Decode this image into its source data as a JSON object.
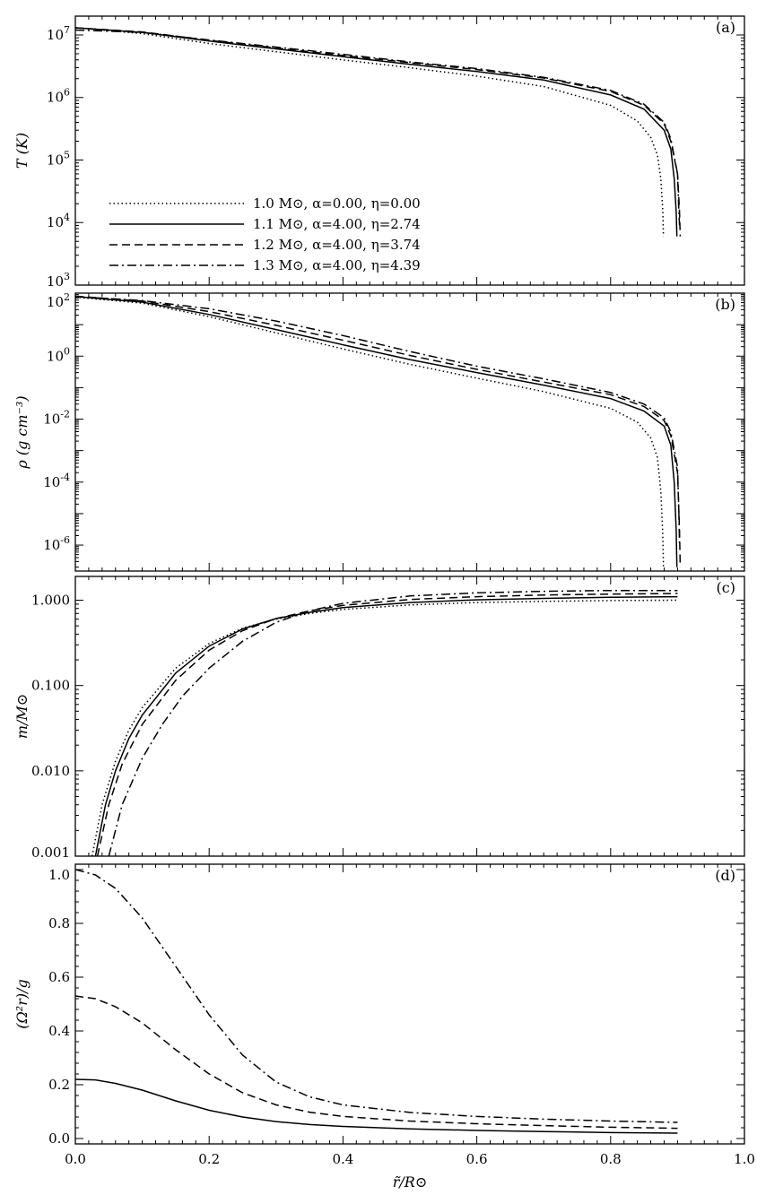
{
  "chart_data": [
    {
      "type": "line",
      "panel": "(a)",
      "ylabel": "T (K)",
      "yscale": "log",
      "xlim": [
        0.0,
        1.0
      ],
      "ylim": [
        1000,
        20000000
      ],
      "y_tick_labels": [
        {
          "base": "10",
          "exp": "3",
          "v": 1000
        },
        {
          "base": "10",
          "exp": "4",
          "v": 10000
        },
        {
          "base": "10",
          "exp": "5",
          "v": 100000
        },
        {
          "base": "10",
          "exp": "6",
          "v": 1000000
        },
        {
          "base": "10",
          "exp": "7",
          "v": 10000000
        }
      ],
      "legend": [
        {
          "text": "1.0 M⊙, α=0.00, η=0.00",
          "dash": "dotted"
        },
        {
          "text": "1.1 M⊙, α=4.00, η=2.74",
          "dash": "solid"
        },
        {
          "text": "1.2 M⊙, α=4.00, η=3.74",
          "dash": "dashed"
        },
        {
          "text": "1.3 M⊙, α=4.00, η=4.39",
          "dash": "dashdot"
        }
      ],
      "series": [
        {
          "dash": "dotted",
          "points": [
            [
              0.0,
              13000000
            ],
            [
              0.1,
              10500000
            ],
            [
              0.2,
              7300000
            ],
            [
              0.3,
              5400000
            ],
            [
              0.4,
              4000000
            ],
            [
              0.5,
              3000000
            ],
            [
              0.6,
              2200000
            ],
            [
              0.7,
              1500000
            ],
            [
              0.8,
              750000
            ],
            [
              0.84,
              420000
            ],
            [
              0.86,
              230000
            ],
            [
              0.87,
              120000
            ],
            [
              0.875,
              50000
            ],
            [
              0.878,
              15000
            ],
            [
              0.879,
              6000
            ]
          ]
        },
        {
          "dash": "solid",
          "points": [
            [
              0.0,
              13000000
            ],
            [
              0.1,
              11000000
            ],
            [
              0.2,
              8000000
            ],
            [
              0.3,
              6000000
            ],
            [
              0.4,
              4500000
            ],
            [
              0.5,
              3400000
            ],
            [
              0.6,
              2600000
            ],
            [
              0.7,
              1900000
            ],
            [
              0.8,
              1100000
            ],
            [
              0.85,
              650000
            ],
            [
              0.88,
              300000
            ],
            [
              0.89,
              150000
            ],
            [
              0.895,
              50000
            ],
            [
              0.898,
              15000
            ],
            [
              0.899,
              6000
            ]
          ]
        },
        {
          "dash": "dashed",
          "points": [
            [
              0.0,
              13000000
            ],
            [
              0.1,
              11200000
            ],
            [
              0.2,
              8200000
            ],
            [
              0.3,
              6200000
            ],
            [
              0.4,
              4700000
            ],
            [
              0.5,
              3600000
            ],
            [
              0.6,
              2800000
            ],
            [
              0.7,
              2050000
            ],
            [
              0.8,
              1250000
            ],
            [
              0.85,
              750000
            ],
            [
              0.88,
              380000
            ],
            [
              0.89,
              200000
            ],
            [
              0.9,
              60000
            ],
            [
              0.903,
              15000
            ],
            [
              0.904,
              6000
            ]
          ]
        },
        {
          "dash": "dashdot",
          "points": [
            [
              0.0,
              12000000
            ],
            [
              0.1,
              11000000
            ],
            [
              0.2,
              8300000
            ],
            [
              0.3,
              6400000
            ],
            [
              0.4,
              4900000
            ],
            [
              0.5,
              3700000
            ],
            [
              0.6,
              2900000
            ],
            [
              0.7,
              2100000
            ],
            [
              0.8,
              1300000
            ],
            [
              0.85,
              780000
            ],
            [
              0.88,
              400000
            ],
            [
              0.89,
              220000
            ],
            [
              0.9,
              60000
            ],
            [
              0.902,
              15000
            ],
            [
              0.903,
              9000
            ]
          ]
        }
      ]
    },
    {
      "type": "line",
      "panel": "(b)",
      "ylabel": "ρ (g cm⁻³)",
      "yscale": "log",
      "xlim": [
        0.0,
        1.0
      ],
      "ylim": [
        1.5e-07,
        100
      ],
      "y_tick_labels": [
        {
          "base": "10",
          "exp": "-6",
          "v": 1e-06
        },
        {
          "base": "10",
          "exp": "-4",
          "v": 0.0001
        },
        {
          "base": "10",
          "exp": "-2",
          "v": 0.01
        },
        {
          "base": "10",
          "exp": "0",
          "v": 1
        },
        {
          "base": "10",
          "exp": "2",
          "v": 100
        }
      ],
      "series": [
        {
          "dash": "dotted",
          "points": [
            [
              0.0,
              75
            ],
            [
              0.1,
              48
            ],
            [
              0.2,
              18
            ],
            [
              0.3,
              5.5
            ],
            [
              0.4,
              1.7
            ],
            [
              0.5,
              0.55
            ],
            [
              0.6,
              0.2
            ],
            [
              0.7,
              0.075
            ],
            [
              0.8,
              0.022
            ],
            [
              0.84,
              0.008
            ],
            [
              0.86,
              0.0025
            ],
            [
              0.87,
              0.0006
            ],
            [
              0.875,
              5e-05
            ],
            [
              0.878,
              2e-06
            ],
            [
              0.879,
              2e-07
            ]
          ]
        },
        {
          "dash": "solid",
          "points": [
            [
              0.0,
              78
            ],
            [
              0.1,
              52
            ],
            [
              0.2,
              21
            ],
            [
              0.3,
              7
            ],
            [
              0.4,
              2.3
            ],
            [
              0.5,
              0.78
            ],
            [
              0.6,
              0.3
            ],
            [
              0.7,
              0.12
            ],
            [
              0.8,
              0.045
            ],
            [
              0.85,
              0.018
            ],
            [
              0.88,
              0.006
            ],
            [
              0.89,
              0.0015
            ],
            [
              0.895,
              0.0001
            ],
            [
              0.898,
              3e-06
            ],
            [
              0.899,
              2e-07
            ]
          ]
        },
        {
          "dash": "dashed",
          "points": [
            [
              0.0,
              80
            ],
            [
              0.1,
              56
            ],
            [
              0.2,
              26
            ],
            [
              0.3,
              9.5
            ],
            [
              0.4,
              3.2
            ],
            [
              0.5,
              1.05
            ],
            [
              0.6,
              0.38
            ],
            [
              0.7,
              0.15
            ],
            [
              0.8,
              0.06
            ],
            [
              0.85,
              0.025
            ],
            [
              0.88,
              0.009
            ],
            [
              0.89,
              0.003
            ],
            [
              0.9,
              0.0002
            ],
            [
              0.903,
              3e-06
            ],
            [
              0.904,
              2e-07
            ]
          ]
        },
        {
          "dash": "dashdot",
          "points": [
            [
              0.0,
              78
            ],
            [
              0.1,
              58
            ],
            [
              0.2,
              32
            ],
            [
              0.3,
              13
            ],
            [
              0.4,
              4.5
            ],
            [
              0.5,
              1.4
            ],
            [
              0.6,
              0.48
            ],
            [
              0.7,
              0.19
            ],
            [
              0.8,
              0.07
            ],
            [
              0.85,
              0.03
            ],
            [
              0.88,
              0.011
            ],
            [
              0.89,
              0.004
            ],
            [
              0.9,
              0.0003
            ],
            [
              0.902,
              1e-05
            ],
            [
              0.903,
              1e-06
            ]
          ]
        }
      ]
    },
    {
      "type": "line",
      "panel": "(c)",
      "ylabel": "m/M⊙",
      "yscale": "log",
      "xlim": [
        0.0,
        1.0
      ],
      "ylim": [
        0.001,
        1.9
      ],
      "y_tick_labels": [
        {
          "text": "0.001",
          "v": 0.001
        },
        {
          "text": "0.010",
          "v": 0.01
        },
        {
          "text": "0.100",
          "v": 0.1
        },
        {
          "text": "1.000",
          "v": 1
        }
      ],
      "series": [
        {
          "dash": "dotted",
          "points": [
            [
              0.025,
              0.001
            ],
            [
              0.04,
              0.004
            ],
            [
              0.06,
              0.013
            ],
            [
              0.08,
              0.03
            ],
            [
              0.1,
              0.055
            ],
            [
              0.15,
              0.16
            ],
            [
              0.2,
              0.31
            ],
            [
              0.25,
              0.47
            ],
            [
              0.3,
              0.6
            ],
            [
              0.35,
              0.7
            ],
            [
              0.4,
              0.78
            ],
            [
              0.5,
              0.88
            ],
            [
              0.6,
              0.94
            ],
            [
              0.7,
              0.97
            ],
            [
              0.8,
              0.99
            ],
            [
              0.9,
              1.0
            ]
          ]
        },
        {
          "dash": "solid",
          "points": [
            [
              0.03,
              0.001
            ],
            [
              0.045,
              0.004
            ],
            [
              0.06,
              0.01
            ],
            [
              0.08,
              0.024
            ],
            [
              0.1,
              0.045
            ],
            [
              0.15,
              0.14
            ],
            [
              0.2,
              0.29
            ],
            [
              0.25,
              0.46
            ],
            [
              0.3,
              0.61
            ],
            [
              0.35,
              0.72
            ],
            [
              0.4,
              0.82
            ],
            [
              0.5,
              0.94
            ],
            [
              0.6,
              1.01
            ],
            [
              0.7,
              1.05
            ],
            [
              0.8,
              1.08
            ],
            [
              0.9,
              1.1
            ]
          ]
        },
        {
          "dash": "dashed",
          "points": [
            [
              0.033,
              0.001
            ],
            [
              0.05,
              0.004
            ],
            [
              0.07,
              0.012
            ],
            [
              0.1,
              0.035
            ],
            [
              0.15,
              0.115
            ],
            [
              0.2,
              0.26
            ],
            [
              0.25,
              0.44
            ],
            [
              0.3,
              0.61
            ],
            [
              0.35,
              0.75
            ],
            [
              0.4,
              0.87
            ],
            [
              0.5,
              1.02
            ],
            [
              0.6,
              1.1
            ],
            [
              0.7,
              1.15
            ],
            [
              0.8,
              1.18
            ],
            [
              0.9,
              1.2
            ]
          ]
        },
        {
          "dash": "dashdot",
          "points": [
            [
              0.05,
              0.001
            ],
            [
              0.07,
              0.004
            ],
            [
              0.1,
              0.014
            ],
            [
              0.13,
              0.035
            ],
            [
              0.16,
              0.075
            ],
            [
              0.2,
              0.16
            ],
            [
              0.25,
              0.33
            ],
            [
              0.3,
              0.55
            ],
            [
              0.35,
              0.75
            ],
            [
              0.4,
              0.92
            ],
            [
              0.5,
              1.12
            ],
            [
              0.6,
              1.22
            ],
            [
              0.7,
              1.27
            ],
            [
              0.8,
              1.3
            ],
            [
              0.9,
              1.3
            ]
          ]
        }
      ]
    },
    {
      "type": "line",
      "panel": "(d)",
      "ylabel": "(Ω²r)/g",
      "xlabel": "r̃/R⊙",
      "yscale": "linear",
      "xlim": [
        0.0,
        1.0
      ],
      "ylim": [
        -0.02,
        1.02
      ],
      "x_tick_labels": [
        "0.0",
        "0.2",
        "0.4",
        "0.6",
        "0.8",
        "1.0"
      ],
      "y_tick_labels": [
        {
          "text": "0.0",
          "v": 0.0
        },
        {
          "text": "0.2",
          "v": 0.2
        },
        {
          "text": "0.4",
          "v": 0.4
        },
        {
          "text": "0.6",
          "v": 0.6
        },
        {
          "text": "0.8",
          "v": 0.8
        },
        {
          "text": "1.0",
          "v": 1.0
        }
      ],
      "series": [
        {
          "dash": "solid",
          "points": [
            [
              0.0,
              0.22
            ],
            [
              0.03,
              0.218
            ],
            [
              0.06,
              0.205
            ],
            [
              0.1,
              0.18
            ],
            [
              0.15,
              0.14
            ],
            [
              0.2,
              0.105
            ],
            [
              0.25,
              0.08
            ],
            [
              0.3,
              0.063
            ],
            [
              0.35,
              0.052
            ],
            [
              0.4,
              0.045
            ],
            [
              0.5,
              0.036
            ],
            [
              0.6,
              0.03
            ],
            [
              0.7,
              0.026
            ],
            [
              0.8,
              0.022
            ],
            [
              0.9,
              0.02
            ]
          ]
        },
        {
          "dash": "dashed",
          "points": [
            [
              0.0,
              0.53
            ],
            [
              0.03,
              0.52
            ],
            [
              0.06,
              0.49
            ],
            [
              0.1,
              0.43
            ],
            [
              0.15,
              0.33
            ],
            [
              0.2,
              0.24
            ],
            [
              0.25,
              0.17
            ],
            [
              0.3,
              0.125
            ],
            [
              0.35,
              0.098
            ],
            [
              0.4,
              0.082
            ],
            [
              0.5,
              0.065
            ],
            [
              0.6,
              0.055
            ],
            [
              0.7,
              0.048
            ],
            [
              0.8,
              0.042
            ],
            [
              0.9,
              0.038
            ]
          ]
        },
        {
          "dash": "dashdot",
          "points": [
            [
              0.0,
              1.0
            ],
            [
              0.03,
              0.98
            ],
            [
              0.06,
              0.93
            ],
            [
              0.1,
              0.82
            ],
            [
              0.15,
              0.64
            ],
            [
              0.2,
              0.46
            ],
            [
              0.25,
              0.31
            ],
            [
              0.3,
              0.21
            ],
            [
              0.35,
              0.155
            ],
            [
              0.4,
              0.125
            ],
            [
              0.5,
              0.097
            ],
            [
              0.6,
              0.082
            ],
            [
              0.7,
              0.072
            ],
            [
              0.8,
              0.065
            ],
            [
              0.9,
              0.06
            ]
          ]
        }
      ]
    }
  ]
}
